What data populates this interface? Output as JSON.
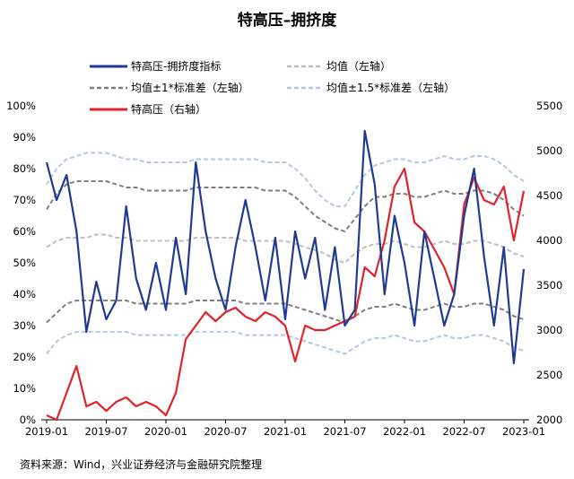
{
  "title": "特高压–拥挤度",
  "source": "资料来源：Wind，兴业证券经济与金融研究院整理",
  "colors": {
    "crowding": "#1f3a93",
    "mean": "#bfbfbf",
    "band1": "#7f7f7f",
    "band15": "#b4c7e7",
    "price": "#e0242b"
  },
  "chart_data": {
    "type": "line",
    "title": "特高压–拥挤度",
    "x": [
      "2019-01",
      "2019-02",
      "2019-03",
      "2019-04",
      "2019-05",
      "2019-06",
      "2019-07",
      "2019-08",
      "2019-09",
      "2019-10",
      "2019-11",
      "2019-12",
      "2020-01",
      "2020-02",
      "2020-03",
      "2020-04",
      "2020-05",
      "2020-06",
      "2020-07",
      "2020-08",
      "2020-09",
      "2020-10",
      "2020-11",
      "2020-12",
      "2021-01",
      "2021-02",
      "2021-03",
      "2021-04",
      "2021-05",
      "2021-06",
      "2021-07",
      "2021-08",
      "2021-09",
      "2021-10",
      "2021-11",
      "2021-12",
      "2022-01",
      "2022-02",
      "2022-03",
      "2022-04",
      "2022-05",
      "2022-06",
      "2022-07",
      "2022-08",
      "2022-09",
      "2022-10",
      "2022-11",
      "2022-12",
      "2023-01"
    ],
    "x_tick_labels": [
      "2019-01",
      "2019-07",
      "2020-01",
      "2020-07",
      "2021-01",
      "2021-07",
      "2022-01",
      "2022-07",
      "2023-01"
    ],
    "y_left": {
      "ylim": [
        0,
        100
      ],
      "ticks": [
        "0%",
        "10%",
        "20%",
        "30%",
        "40%",
        "50%",
        "60%",
        "70%",
        "80%",
        "90%",
        "100%"
      ]
    },
    "y_right": {
      "ylim": [
        2000,
        5500
      ],
      "ticks": [
        "2000",
        "2500",
        "3000",
        "3500",
        "4000",
        "4500",
        "5000",
        "5500"
      ]
    },
    "grid": false,
    "legend": "top",
    "series": [
      {
        "name": "特高压-拥挤度指标",
        "axis": "left",
        "values": [
          82,
          70,
          78,
          60,
          28,
          44,
          32,
          38,
          68,
          45,
          35,
          50,
          35,
          58,
          40,
          82,
          60,
          45,
          35,
          55,
          70,
          55,
          38,
          58,
          32,
          60,
          45,
          58,
          35,
          55,
          30,
          35,
          92,
          75,
          40,
          65,
          50,
          30,
          60,
          45,
          30,
          40,
          65,
          80,
          52,
          30,
          55,
          18,
          48
        ]
      },
      {
        "name": "均值（左轴）",
        "axis": "left",
        "values": [
          55,
          57,
          58,
          58,
          58,
          59,
          59,
          58,
          58,
          57,
          57,
          57,
          57,
          57,
          57,
          58,
          58,
          58,
          58,
          58,
          57,
          57,
          57,
          57,
          57,
          56,
          55,
          54,
          53,
          51,
          50,
          53,
          55,
          56,
          56,
          57,
          56,
          55,
          55,
          56,
          57,
          56,
          56,
          57,
          57,
          56,
          55,
          53,
          52
        ]
      },
      {
        "name": "均值±1*标准差（左轴）",
        "axis": "left",
        "values": [
          67,
          72,
          75,
          76,
          76,
          76,
          76,
          75,
          74,
          74,
          73,
          73,
          73,
          73,
          73,
          74,
          74,
          74,
          74,
          74,
          74,
          74,
          73,
          73,
          73,
          71,
          68,
          65,
          63,
          61,
          60,
          64,
          68,
          71,
          71,
          72,
          72,
          71,
          71,
          72,
          73,
          72,
          72,
          73,
          73,
          72,
          70,
          67,
          65
        ]
      },
      {
        "name": "均值±1*标准差（左轴）",
        "axis": "left",
        "values": [
          31,
          34,
          37,
          38,
          38,
          38,
          38,
          38,
          38,
          37,
          37,
          37,
          37,
          37,
          37,
          38,
          38,
          38,
          38,
          38,
          37,
          37,
          37,
          37,
          37,
          36,
          35,
          34,
          33,
          32,
          31,
          33,
          35,
          36,
          36,
          37,
          36,
          35,
          35,
          36,
          37,
          36,
          36,
          37,
          37,
          36,
          35,
          33,
          32
        ]
      },
      {
        "name": "均值±1.5*标准差（左轴）",
        "axis": "left",
        "values": [
          75,
          80,
          83,
          84,
          85,
          85,
          85,
          84,
          83,
          83,
          82,
          82,
          82,
          82,
          82,
          83,
          83,
          83,
          83,
          83,
          83,
          83,
          82,
          82,
          82,
          80,
          77,
          73,
          70,
          68,
          68,
          73,
          78,
          81,
          82,
          83,
          83,
          82,
          82,
          83,
          84,
          83,
          83,
          84,
          84,
          83,
          81,
          78,
          76
        ]
      },
      {
        "name": "均值±1.5*标准差（左轴）",
        "axis": "left",
        "values": [
          21,
          25,
          27,
          28,
          28,
          28,
          28,
          28,
          28,
          27,
          27,
          27,
          27,
          27,
          27,
          28,
          28,
          28,
          28,
          28,
          27,
          27,
          27,
          27,
          27,
          26,
          25,
          24,
          23,
          22,
          21,
          23,
          25,
          26,
          26,
          27,
          26,
          25,
          25,
          26,
          27,
          26,
          26,
          27,
          27,
          26,
          25,
          23,
          22
        ]
      },
      {
        "name": "特高压（右轴）",
        "axis": "right",
        "values": [
          2050,
          2000,
          2300,
          2600,
          2150,
          2200,
          2100,
          2200,
          2250,
          2150,
          2200,
          2150,
          2050,
          2300,
          2900,
          3050,
          3200,
          3100,
          3200,
          3250,
          3150,
          3100,
          3200,
          3150,
          3050,
          2650,
          3050,
          3000,
          3000,
          3050,
          3100,
          3150,
          3700,
          3600,
          4000,
          4600,
          4800,
          4200,
          4100,
          3900,
          3700,
          3400,
          4400,
          4700,
          4450,
          4400,
          4600,
          4000,
          4550
        ]
      }
    ]
  }
}
